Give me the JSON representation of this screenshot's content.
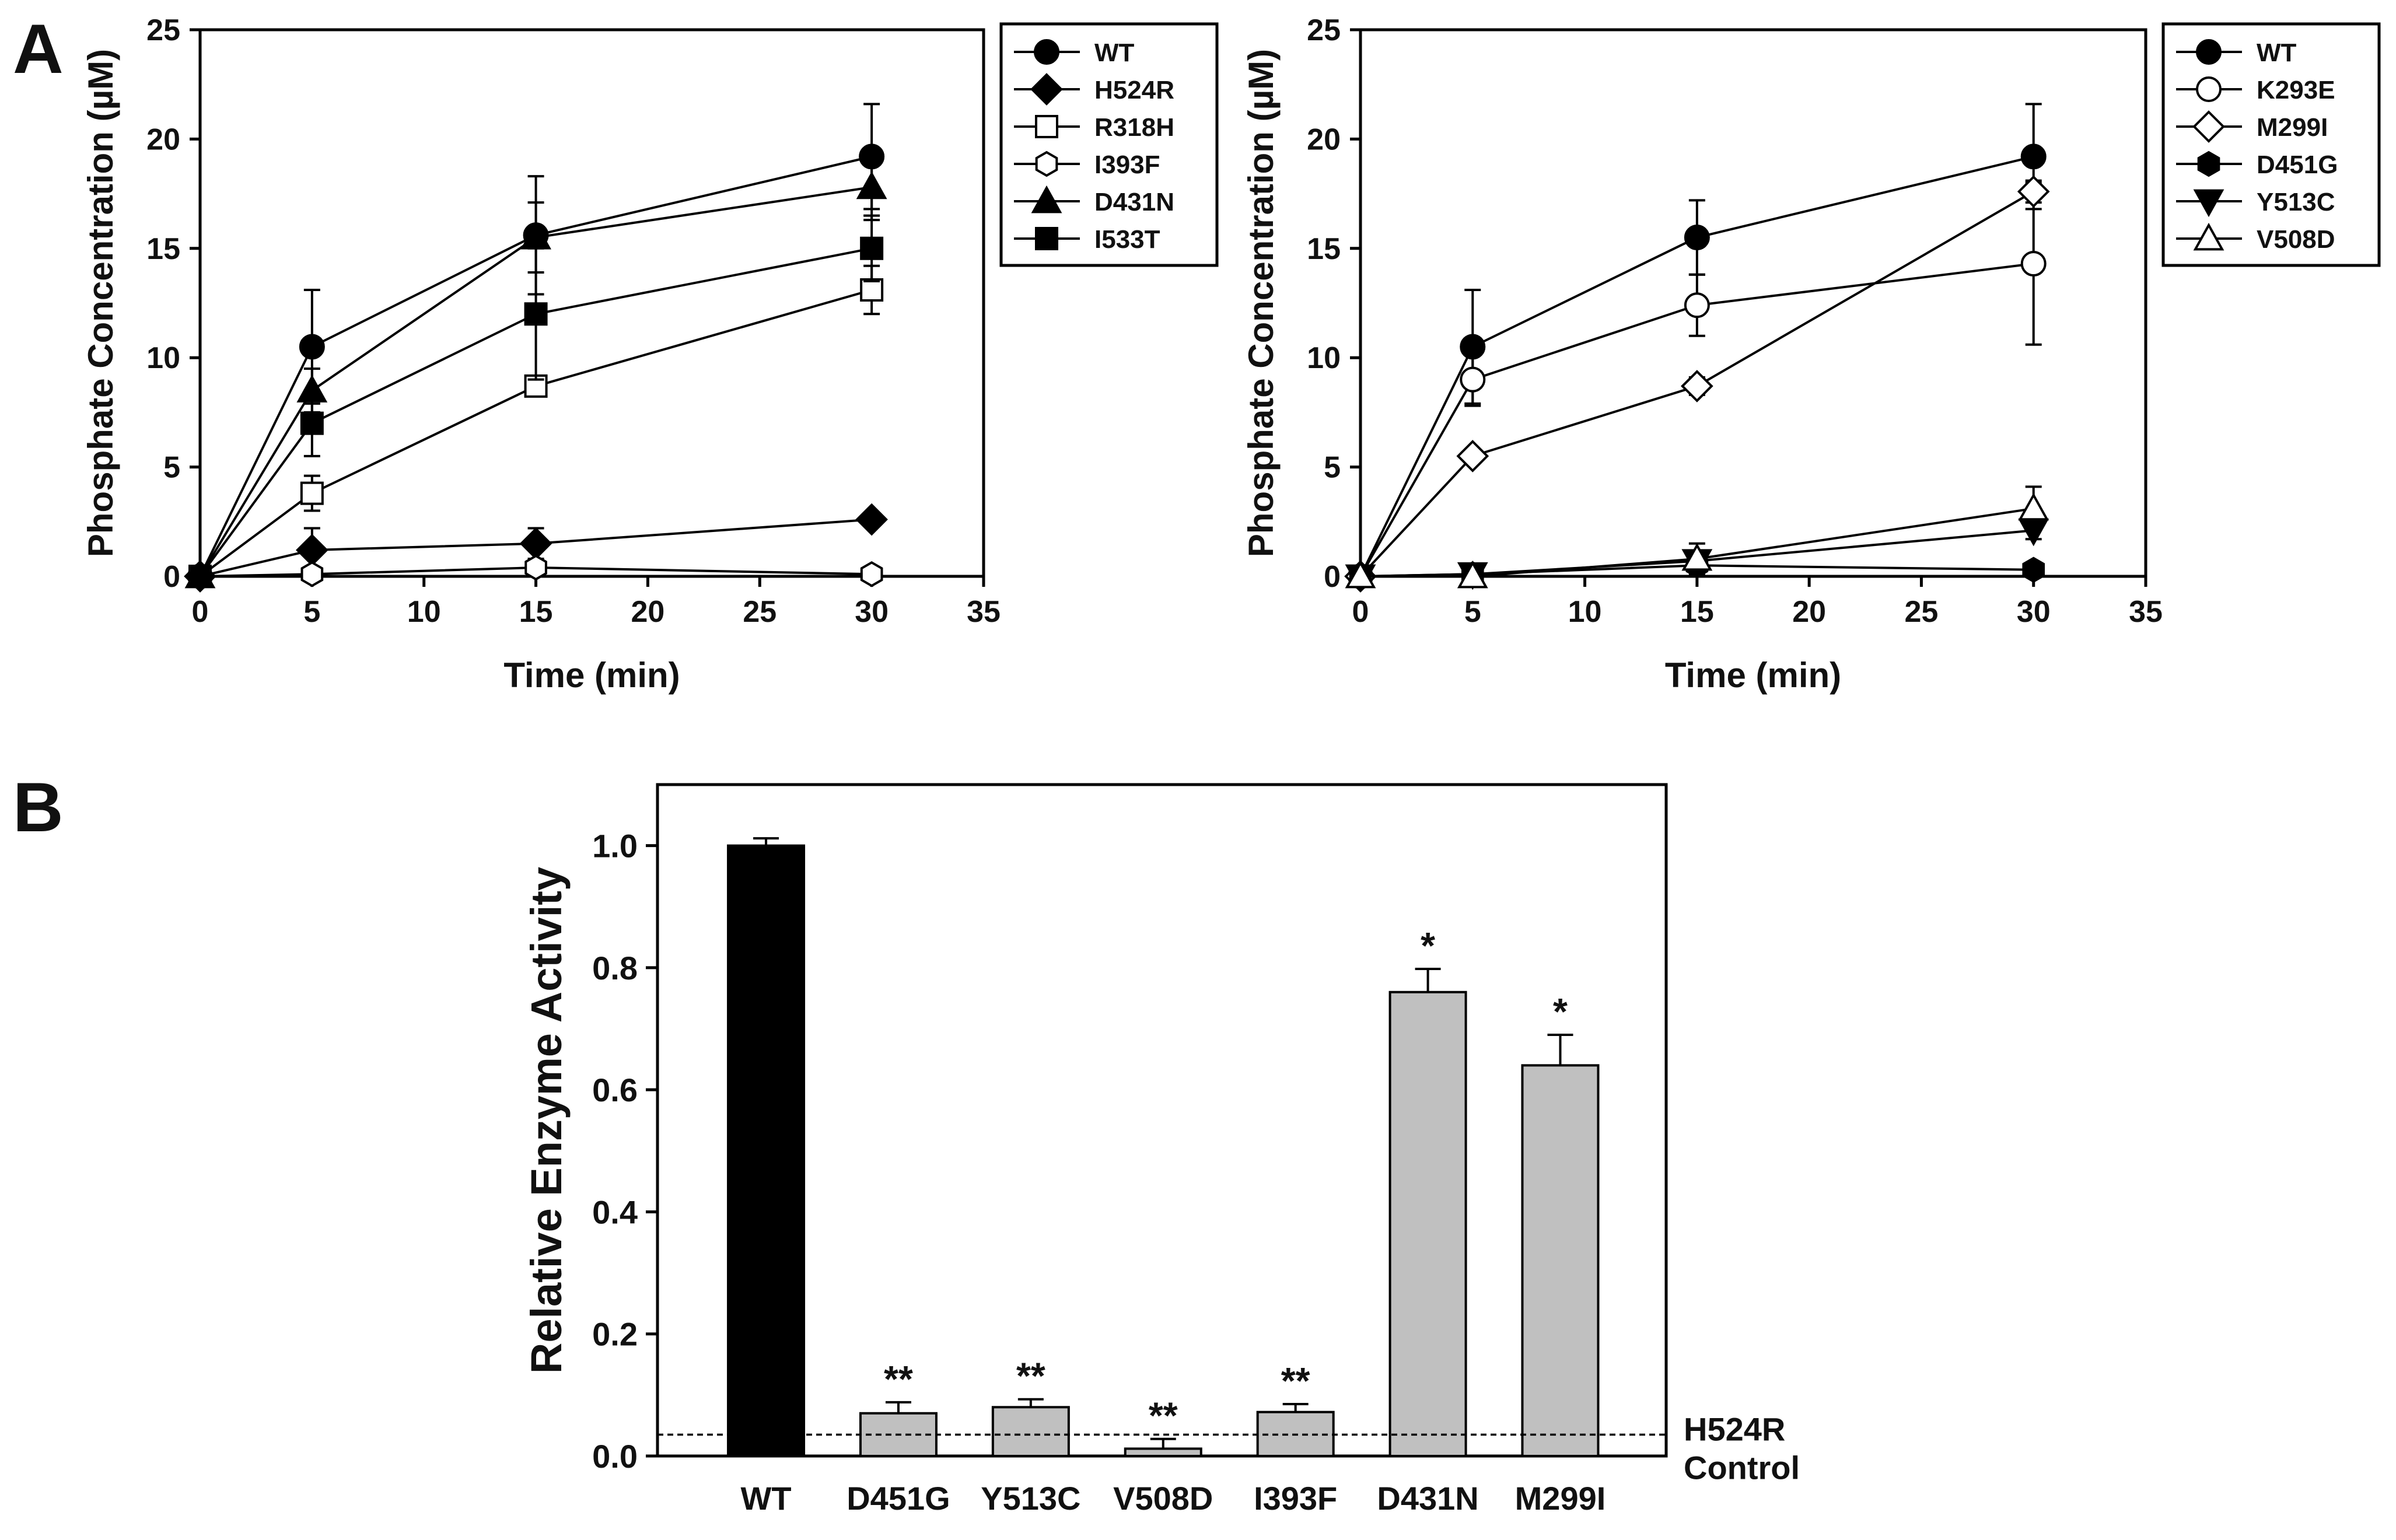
{
  "panel_labels": {
    "a": "A",
    "b": "B"
  },
  "chart_data": [
    {
      "type": "line",
      "panel": "A-left",
      "xlabel": "Time (min)",
      "ylabel": "Phosphate Concentration (µM)",
      "xlim": [
        0,
        35
      ],
      "ylim": [
        0,
        25
      ],
      "xticks": [
        0,
        5,
        10,
        15,
        20,
        25,
        30,
        35
      ],
      "yticks": [
        0,
        5,
        10,
        15,
        20,
        25
      ],
      "grid": false,
      "legend": "right",
      "x": [
        0,
        5,
        15,
        30
      ],
      "series": [
        {
          "name": "WT",
          "marker": "circle-filled",
          "values": [
            0,
            10.5,
            15.6,
            19.2
          ],
          "errors": [
            0,
            2.6,
            2.7,
            2.4
          ]
        },
        {
          "name": "H524R",
          "marker": "diamond-filled",
          "values": [
            0,
            1.2,
            1.5,
            2.6
          ],
          "errors": [
            0,
            1.0,
            0.7,
            0.2
          ]
        },
        {
          "name": "R318H",
          "marker": "square-open",
          "values": [
            0,
            3.8,
            8.7,
            13.1
          ],
          "errors": [
            0,
            0.8,
            0.3,
            1.1
          ]
        },
        {
          "name": "I393F",
          "marker": "hexagon-open",
          "values": [
            0,
            0.1,
            0.4,
            0.1
          ],
          "errors": [
            0,
            0.1,
            0.2,
            0.1
          ]
        },
        {
          "name": "D431N",
          "marker": "triangle-filled",
          "values": [
            0,
            8.5,
            15.5,
            17.8
          ],
          "errors": [
            0,
            1.0,
            1.6,
            1.5
          ]
        },
        {
          "name": "I533T",
          "marker": "square-filled",
          "values": [
            0,
            7.0,
            12.0,
            15.0
          ],
          "errors": [
            0,
            1.5,
            3.0,
            1.5
          ]
        }
      ]
    },
    {
      "type": "line",
      "panel": "A-right",
      "xlabel": "Time (min)",
      "ylabel": "Phosphate Concentration (µM)",
      "xlim": [
        0,
        35
      ],
      "ylim": [
        0,
        25
      ],
      "xticks": [
        0,
        5,
        10,
        15,
        20,
        25,
        30,
        35
      ],
      "yticks": [
        0,
        5,
        10,
        15,
        20,
        25
      ],
      "grid": false,
      "legend": "right",
      "x": [
        0,
        5,
        15,
        30
      ],
      "series": [
        {
          "name": "WT",
          "marker": "circle-filled",
          "values": [
            0,
            10.5,
            15.5,
            19.2
          ],
          "errors": [
            0,
            2.6,
            1.7,
            2.4
          ]
        },
        {
          "name": "K293E",
          "marker": "circle-open",
          "values": [
            0,
            9.0,
            12.4,
            14.3
          ],
          "errors": [
            0,
            1.2,
            1.4,
            3.7
          ]
        },
        {
          "name": "M299I",
          "marker": "diamond-open",
          "values": [
            0,
            5.5,
            8.7,
            17.6
          ],
          "errors": [
            0,
            0.2,
            0.4,
            0.5
          ]
        },
        {
          "name": "D451G",
          "marker": "hexagon-filled",
          "values": [
            0,
            0.1,
            0.5,
            0.3
          ],
          "errors": [
            0,
            0.1,
            0.2,
            0.1
          ]
        },
        {
          "name": "Y513C",
          "marker": "triangle-down-filled",
          "values": [
            0,
            0.1,
            0.7,
            2.1
          ],
          "errors": [
            0,
            0.1,
            0.3,
            0.4
          ]
        },
        {
          "name": "V508D",
          "marker": "triangle-open",
          "values": [
            0,
            0.0,
            0.8,
            3.1
          ],
          "errors": [
            0,
            0.1,
            0.7,
            1.0
          ]
        }
      ]
    },
    {
      "type": "bar",
      "panel": "B",
      "xlabel": "",
      "ylabel": "Relative Enzyme Activity",
      "ylim": [
        0,
        1.1
      ],
      "yticks": [
        0.0,
        0.2,
        0.4,
        0.6,
        0.8,
        1.0
      ],
      "grid": false,
      "categories": [
        "WT",
        "D451G",
        "Y513C",
        "V508D",
        "I393F",
        "D431N",
        "M299I"
      ],
      "values": [
        1.0,
        0.07,
        0.08,
        0.012,
        0.072,
        0.76,
        0.64
      ],
      "errors": [
        0.012,
        0.018,
        0.013,
        0.016,
        0.013,
        0.038,
        0.05
      ],
      "bar_colors": [
        "#000000",
        "#c0c0c0",
        "#c0c0c0",
        "#c0c0c0",
        "#c0c0c0",
        "#c0c0c0",
        "#c0c0c0"
      ],
      "significance": [
        "",
        "**",
        "**",
        "**",
        "**",
        "*",
        "*"
      ],
      "reference_line": {
        "value": 0.035,
        "label_line1": "H524R",
        "label_line2": "Control"
      }
    }
  ]
}
